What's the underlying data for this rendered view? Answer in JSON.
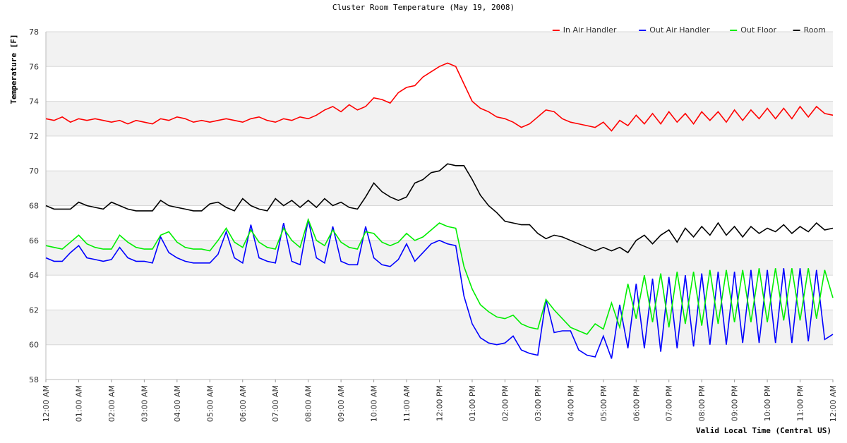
{
  "chart_data": {
    "type": "line",
    "title": "Cluster Room Temperature (May 19, 2008)",
    "y_label": "Temperature [F]",
    "x_label": "Valid Local Time (Central US)",
    "legend_position": "top-right",
    "grid": true,
    "ylim": [
      58,
      78
    ],
    "yticks": [
      58,
      60,
      62,
      64,
      66,
      68,
      70,
      72,
      74,
      76,
      78
    ],
    "xlim": [
      0,
      24
    ],
    "xticks": [
      {
        "value": 0,
        "label": "12:00 AM"
      },
      {
        "value": 1,
        "label": "01:00 AM"
      },
      {
        "value": 2,
        "label": "02:00 AM"
      },
      {
        "value": 3,
        "label": "03:00 AM"
      },
      {
        "value": 4,
        "label": "04:00 AM"
      },
      {
        "value": 5,
        "label": "05:00 AM"
      },
      {
        "value": 6,
        "label": "06:00 AM"
      },
      {
        "value": 7,
        "label": "07:00 AM"
      },
      {
        "value": 8,
        "label": "08:00 AM"
      },
      {
        "value": 9,
        "label": "09:00 AM"
      },
      {
        "value": 10,
        "label": "10:00 AM"
      },
      {
        "value": 11,
        "label": "11:00 AM"
      },
      {
        "value": 12,
        "label": "12:00 PM"
      },
      {
        "value": 13,
        "label": "01:00 PM"
      },
      {
        "value": 14,
        "label": "02:00 PM"
      },
      {
        "value": 15,
        "label": "03:00 PM"
      },
      {
        "value": 16,
        "label": "04:00 PM"
      },
      {
        "value": 17,
        "label": "05:00 PM"
      },
      {
        "value": 18,
        "label": "06:00 PM"
      },
      {
        "value": 19,
        "label": "07:00 PM"
      },
      {
        "value": 20,
        "label": "08:00 PM"
      },
      {
        "value": 21,
        "label": "09:00 PM"
      },
      {
        "value": 22,
        "label": "10:00 PM"
      },
      {
        "value": 23,
        "label": "11:00 PM"
      },
      {
        "value": 24,
        "label": "12:00 AM"
      }
    ],
    "x": [
      0,
      0.25,
      0.5,
      0.75,
      1,
      1.25,
      1.5,
      1.75,
      2,
      2.25,
      2.5,
      2.75,
      3,
      3.25,
      3.5,
      3.75,
      4,
      4.25,
      4.5,
      4.75,
      5,
      5.25,
      5.5,
      5.75,
      6,
      6.25,
      6.5,
      6.75,
      7,
      7.25,
      7.5,
      7.75,
      8,
      8.25,
      8.5,
      8.75,
      9,
      9.25,
      9.5,
      9.75,
      10,
      10.25,
      10.5,
      10.75,
      11,
      11.25,
      11.5,
      11.75,
      12,
      12.25,
      12.5,
      12.75,
      13,
      13.25,
      13.5,
      13.75,
      14,
      14.25,
      14.5,
      14.75,
      15,
      15.25,
      15.5,
      15.75,
      16,
      16.25,
      16.5,
      16.75,
      17,
      17.25,
      17.5,
      17.75,
      18,
      18.25,
      18.5,
      18.75,
      19,
      19.25,
      19.5,
      19.75,
      20,
      20.25,
      20.5,
      20.75,
      21,
      21.25,
      21.5,
      21.75,
      22,
      22.25,
      22.5,
      22.75,
      23,
      23.25,
      23.5,
      23.75,
      24
    ],
    "series": [
      {
        "name": "In Air Handler",
        "color": "#ff0000",
        "values": [
          73.0,
          72.9,
          73.1,
          72.8,
          73.0,
          72.9,
          73.0,
          72.9,
          72.8,
          72.9,
          72.7,
          72.9,
          72.8,
          72.7,
          73.0,
          72.9,
          73.1,
          73.0,
          72.8,
          72.9,
          72.8,
          72.9,
          73.0,
          72.9,
          72.8,
          73.0,
          73.1,
          72.9,
          72.8,
          73.0,
          72.9,
          73.1,
          73.0,
          73.2,
          73.5,
          73.7,
          73.4,
          73.8,
          73.5,
          73.7,
          74.2,
          74.1,
          73.9,
          74.5,
          74.8,
          74.9,
          75.4,
          75.7,
          76.0,
          76.2,
          76.0,
          75.0,
          74.0,
          73.6,
          73.4,
          73.1,
          73.0,
          72.8,
          72.5,
          72.7,
          73.1,
          73.5,
          73.4,
          73.0,
          72.8,
          72.7,
          72.6,
          72.5,
          72.8,
          72.3,
          72.9,
          72.6,
          73.2,
          72.7,
          73.3,
          72.7,
          73.4,
          72.8,
          73.3,
          72.7,
          73.4,
          72.9,
          73.4,
          72.8,
          73.5,
          72.9,
          73.5,
          73.0,
          73.6,
          73.0,
          73.6,
          73.0,
          73.7,
          73.1,
          73.7,
          73.3,
          73.2
        ]
      },
      {
        "name": "Out Air Handler",
        "color": "#0000ff",
        "values": [
          65.0,
          64.8,
          64.8,
          65.3,
          65.7,
          65.0,
          64.9,
          64.8,
          64.9,
          65.6,
          65.0,
          64.8,
          64.8,
          64.7,
          66.2,
          65.3,
          65.0,
          64.8,
          64.7,
          64.7,
          64.7,
          65.2,
          66.5,
          65.0,
          64.7,
          66.9,
          65.0,
          64.8,
          64.7,
          67.0,
          64.8,
          64.6,
          67.2,
          65.0,
          64.7,
          66.8,
          64.8,
          64.6,
          64.6,
          66.8,
          65.0,
          64.6,
          64.5,
          64.9,
          65.8,
          64.8,
          65.3,
          65.8,
          66.0,
          65.8,
          65.7,
          62.8,
          61.2,
          60.4,
          60.1,
          60.0,
          60.1,
          60.5,
          59.7,
          59.5,
          59.4,
          62.6,
          60.7,
          60.8,
          60.8,
          59.7,
          59.4,
          59.3,
          60.5,
          59.2,
          62.3,
          59.8,
          63.5,
          59.8,
          63.8,
          59.6,
          63.9,
          59.8,
          64.0,
          59.9,
          64.1,
          60.0,
          64.2,
          60.0,
          64.2,
          60.1,
          64.3,
          60.1,
          64.3,
          60.1,
          64.4,
          60.1,
          64.4,
          60.2,
          64.3,
          60.3,
          60.6
        ]
      },
      {
        "name": "Out Floor",
        "color": "#00ee00",
        "values": [
          65.7,
          65.6,
          65.5,
          65.9,
          66.3,
          65.8,
          65.6,
          65.5,
          65.5,
          66.3,
          65.9,
          65.6,
          65.5,
          65.5,
          66.3,
          66.5,
          65.9,
          65.6,
          65.5,
          65.5,
          65.4,
          66.0,
          66.7,
          65.9,
          65.6,
          66.6,
          65.9,
          65.6,
          65.5,
          66.7,
          66.0,
          65.6,
          67.2,
          66.0,
          65.7,
          66.6,
          65.9,
          65.6,
          65.5,
          66.5,
          66.4,
          65.9,
          65.7,
          65.9,
          66.4,
          66.0,
          66.2,
          66.6,
          67.0,
          66.8,
          66.7,
          64.5,
          63.2,
          62.3,
          61.9,
          61.6,
          61.5,
          61.7,
          61.2,
          61.0,
          60.9,
          62.6,
          62.0,
          61.5,
          61.0,
          60.8,
          60.6,
          61.2,
          60.9,
          62.4,
          61.0,
          63.5,
          61.5,
          64.0,
          61.3,
          64.1,
          61.0,
          64.2,
          61.2,
          64.2,
          61.1,
          64.3,
          61.2,
          64.3,
          61.3,
          64.3,
          61.3,
          64.4,
          61.3,
          64.4,
          61.4,
          64.4,
          61.4,
          64.4,
          61.5,
          64.3,
          62.7
        ]
      },
      {
        "name": "Room",
        "color": "#000000",
        "values": [
          68.0,
          67.8,
          67.8,
          67.8,
          68.2,
          68.0,
          67.9,
          67.8,
          68.2,
          68.0,
          67.8,
          67.7,
          67.7,
          67.7,
          68.3,
          68.0,
          67.9,
          67.8,
          67.7,
          67.7,
          68.1,
          68.2,
          67.9,
          67.7,
          68.4,
          68.0,
          67.8,
          67.7,
          68.4,
          68.0,
          68.3,
          67.9,
          68.3,
          67.9,
          68.4,
          68.0,
          68.2,
          67.9,
          67.8,
          68.5,
          69.3,
          68.8,
          68.5,
          68.3,
          68.5,
          69.3,
          69.5,
          69.9,
          70.0,
          70.4,
          70.3,
          70.3,
          69.5,
          68.6,
          68.0,
          67.6,
          67.1,
          67.0,
          66.9,
          66.9,
          66.4,
          66.1,
          66.3,
          66.2,
          66.0,
          65.8,
          65.6,
          65.4,
          65.6,
          65.4,
          65.6,
          65.3,
          66.0,
          66.3,
          65.8,
          66.3,
          66.6,
          65.9,
          66.7,
          66.2,
          66.8,
          66.3,
          67.0,
          66.3,
          66.8,
          66.2,
          66.8,
          66.4,
          66.7,
          66.5,
          66.9,
          66.4,
          66.8,
          66.5,
          67.0,
          66.6,
          66.7
        ]
      }
    ]
  }
}
